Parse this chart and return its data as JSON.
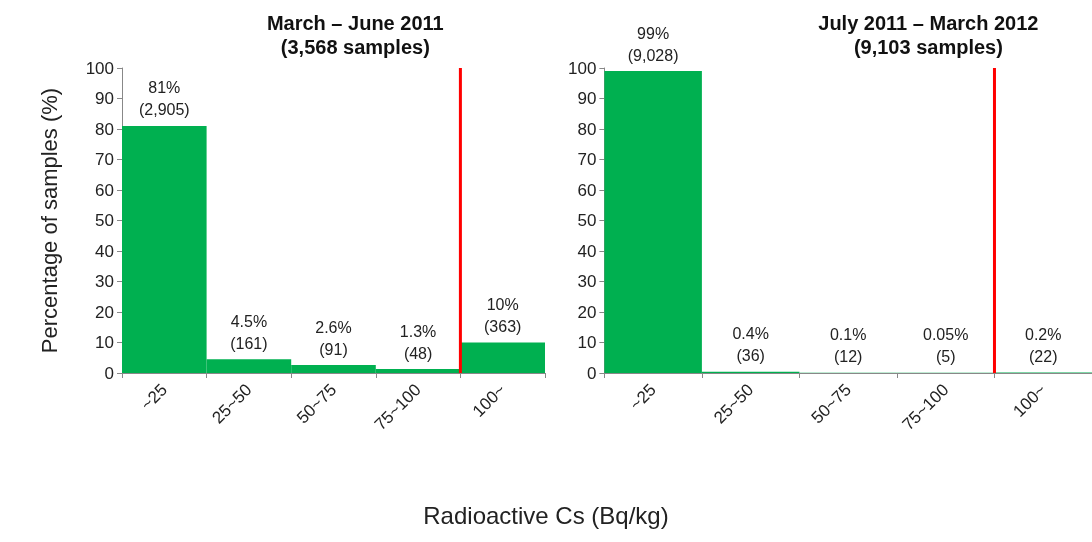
{
  "chart_data": [
    {
      "type": "bar",
      "title": "March – June 2011\n(3,568 samples)",
      "ylabel": "Percentage of samples (%)",
      "xlabel": "Radioactive Cs (Bq/kg)",
      "categories": [
        "~25",
        "25~50",
        "50~75",
        "75~100",
        "100~"
      ],
      "series": [
        {
          "color": "#00b050",
          "values": [
            81,
            4.5,
            2.6,
            1.3,
            10
          ],
          "value_labels": [
            "81%\n(2,905)",
            "4.5%\n(161)",
            "2.6%\n(91)",
            "1.3%\n(48)",
            "10%\n(363)"
          ]
        }
      ],
      "ylim": [
        0,
        100
      ],
      "yticks": [
        0,
        10,
        20,
        30,
        40,
        50,
        60,
        70,
        80,
        90,
        100
      ],
      "grid": false,
      "ref_lines": [
        {
          "axis": "x",
          "value": "100~",
          "color": "#ff0000"
        }
      ]
    },
    {
      "type": "bar",
      "title": "July 2011 – March 2012\n(9,103 samples)",
      "categories": [
        "~25",
        "25~50",
        "50~75",
        "75~100",
        "100~"
      ],
      "series": [
        {
          "color": "#00b050",
          "values": [
            99,
            0.4,
            0.1,
            0.05,
            0.2
          ],
          "value_labels": [
            "99%\n(9,028)",
            "0.4%\n(36)",
            "0.1%\n(12)",
            "0.05%\n(5)",
            "0.2%\n(22)"
          ]
        }
      ],
      "ylim": [
        0,
        100
      ],
      "yticks": [
        0,
        10,
        20,
        30,
        40,
        50,
        60,
        70,
        80,
        90,
        100
      ],
      "grid": false,
      "ref_lines": [
        {
          "axis": "x",
          "value": "100~",
          "color": "#ff0000"
        }
      ]
    }
  ]
}
